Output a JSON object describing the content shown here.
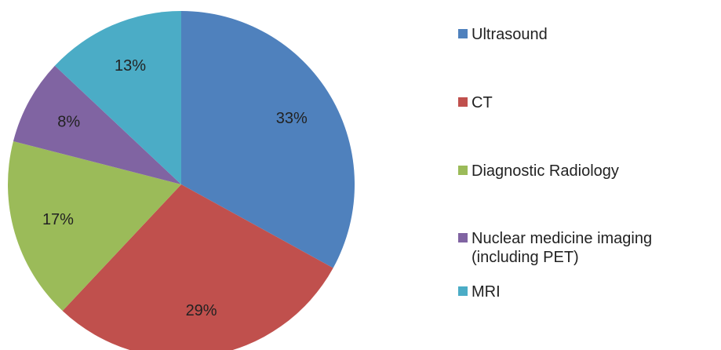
{
  "chart_data": {
    "type": "pie",
    "categories": [
      "Ultrasound",
      "CT",
      "Diagnostic Radiology",
      "Nuclear medicine imaging (including PET)",
      "MRI"
    ],
    "values": [
      33,
      29,
      17,
      8,
      13
    ],
    "value_labels": [
      "33%",
      "29%",
      "17%",
      "8%",
      "13%"
    ],
    "colors": [
      "#4f81bd",
      "#c0504d",
      "#9bbb59",
      "#8064a2",
      "#4bacc6"
    ],
    "legend": "right"
  }
}
